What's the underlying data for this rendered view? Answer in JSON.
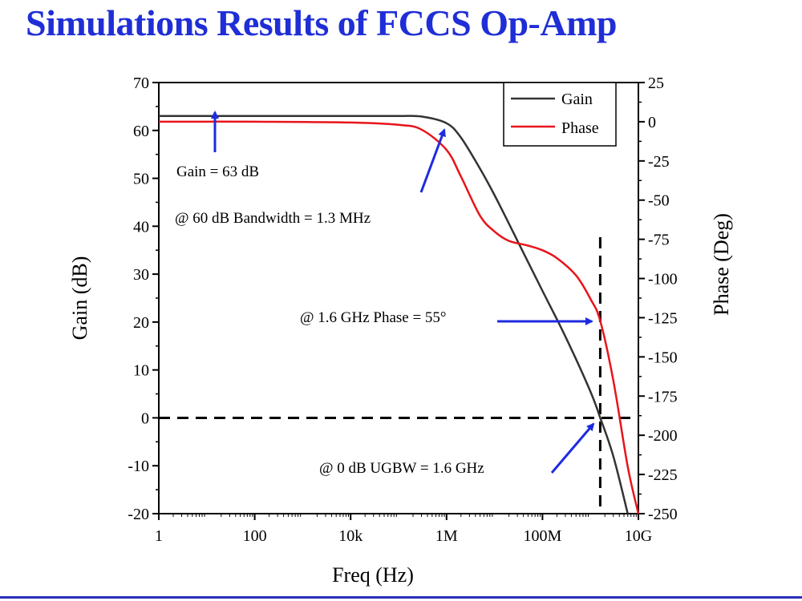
{
  "slide": {
    "title": "Simulations Results of FCCS Op-Amp",
    "title_color": "#1f2ed6",
    "rule_color": "#2a2fb8"
  },
  "chart_data": {
    "type": "line",
    "xlabel": "Freq (Hz)",
    "ylabel": "Gain (dB)",
    "y2label": "Phase (Deg)",
    "xscale": "log",
    "xlim": [
      1,
      10000000000
    ],
    "ylim": [
      -20,
      70
    ],
    "y2lim": [
      -250,
      25
    ],
    "x_ticks": [
      {
        "value": 1,
        "label": "1"
      },
      {
        "value": 100,
        "label": "100"
      },
      {
        "value": 10000,
        "label": "10k"
      },
      {
        "value": 1000000,
        "label": "1M"
      },
      {
        "value": 100000000,
        "label": "100M"
      },
      {
        "value": 10000000000,
        "label": "10G"
      }
    ],
    "y_ticks": [
      70,
      60,
      50,
      40,
      30,
      20,
      10,
      0,
      -10,
      -20
    ],
    "y2_ticks": [
      25,
      0,
      -25,
      -50,
      -75,
      -100,
      -125,
      -150,
      -175,
      -200,
      -225,
      -250
    ],
    "grid": false,
    "legend_position": "top-right",
    "series": [
      {
        "name": "Gain",
        "axis": "left",
        "color": "#333333",
        "x": [
          1,
          100,
          10000,
          100000,
          300000,
          1000000,
          2000000,
          5000000,
          10000000,
          30000000,
          100000000,
          300000000,
          1000000000,
          1600000000,
          3000000000,
          6000000000
        ],
        "y": [
          63,
          63,
          63,
          63,
          62.9,
          61.5,
          58.5,
          52,
          46.5,
          37,
          26.5,
          17,
          5.5,
          0,
          -8,
          -20
        ]
      },
      {
        "name": "Phase",
        "axis": "right",
        "color": "#e8141a",
        "x": [
          1,
          100,
          10000,
          100000,
          300000,
          1000000,
          2000000,
          5000000,
          10000000,
          20000000,
          50000000,
          100000000,
          200000000,
          500000000,
          1000000000,
          1600000000,
          3000000000,
          6000000000,
          10000000000
        ],
        "y": [
          0,
          0,
          -0.5,
          -2,
          -5,
          -18,
          -35,
          -60,
          -70,
          -76,
          -79,
          -82,
          -87,
          -98,
          -113,
          -127,
          -165,
          -220,
          -250
        ]
      }
    ],
    "annotations": [
      {
        "text": "Gain = 63 dB"
      },
      {
        "text": "@  60 dB Bandwidth = 1.3 MHz"
      },
      {
        "text": "@ 1.6 GHz Phase = 55°"
      },
      {
        "text": "@ 0 dB UGBW = 1.6 GHz"
      }
    ],
    "reference_lines": [
      {
        "kind": "horizontal",
        "axis": "left",
        "value": 0
      },
      {
        "kind": "vertical",
        "value": 1600000000
      }
    ],
    "annotation_arrow_color": "#1e2be0"
  }
}
